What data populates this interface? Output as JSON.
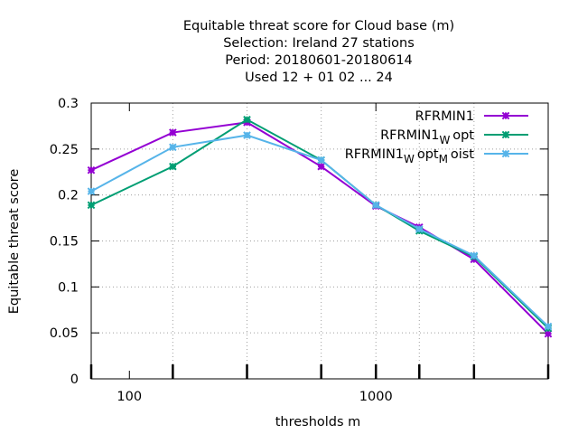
{
  "chart_data": {
    "type": "line",
    "title_lines": [
      "Equitable threat score  for Cloud base (m)",
      "Selection: Ireland     27 stations",
      "Period: 20180601-20180614",
      "Used  12 + 01 02 ... 24"
    ],
    "xlabel": "thresholds m",
    "ylabel": "Equitable threat score",
    "x_scale": "log",
    "xlim": [
      70,
      5000
    ],
    "ylim": [
      0,
      0.3
    ],
    "grid": true,
    "legend_position": "top-right",
    "y_ticks": [
      {
        "value": 0,
        "label": "0"
      },
      {
        "value": 0.05,
        "label": "0.05"
      },
      {
        "value": 0.1,
        "label": "0.1"
      },
      {
        "value": 0.15,
        "label": "0.15"
      },
      {
        "value": 0.2,
        "label": "0.2"
      },
      {
        "value": 0.25,
        "label": "0.25"
      },
      {
        "value": 0.3,
        "label": "0.3"
      }
    ],
    "x_tick_labels": [
      {
        "value": 100,
        "label": "100"
      },
      {
        "value": 1000,
        "label": "1000"
      }
    ],
    "x_major_ticks": [
      100,
      1000
    ],
    "x_data_ticks": [
      70,
      150,
      300,
      600,
      1000,
      1500,
      2500,
      5000
    ],
    "x": [
      70,
      150,
      300,
      600,
      1000,
      1500,
      2500,
      5000
    ],
    "series": [
      {
        "legend": {
          "base": "RFRMIN1",
          "parts": []
        },
        "color": "#9400d3",
        "values": [
          0.227,
          0.268,
          0.279,
          0.231,
          0.188,
          0.165,
          0.13,
          0.049
        ]
      },
      {
        "legend": {
          "base": "RFRMIN1",
          "parts": [
            {
              "sub": "W",
              "text": "opt"
            }
          ]
        },
        "color": "#009e73",
        "values": [
          0.189,
          0.231,
          0.282,
          0.238,
          0.189,
          0.161,
          0.133,
          0.055
        ]
      },
      {
        "legend": {
          "base": "RFRMIN1",
          "parts": [
            {
              "sub": "W",
              "text": "opt"
            },
            {
              "sub": "M",
              "text": "oist"
            }
          ]
        },
        "color": "#56b4e9",
        "values": [
          0.204,
          0.252,
          0.265,
          0.238,
          0.189,
          0.163,
          0.134,
          0.057
        ]
      }
    ]
  }
}
